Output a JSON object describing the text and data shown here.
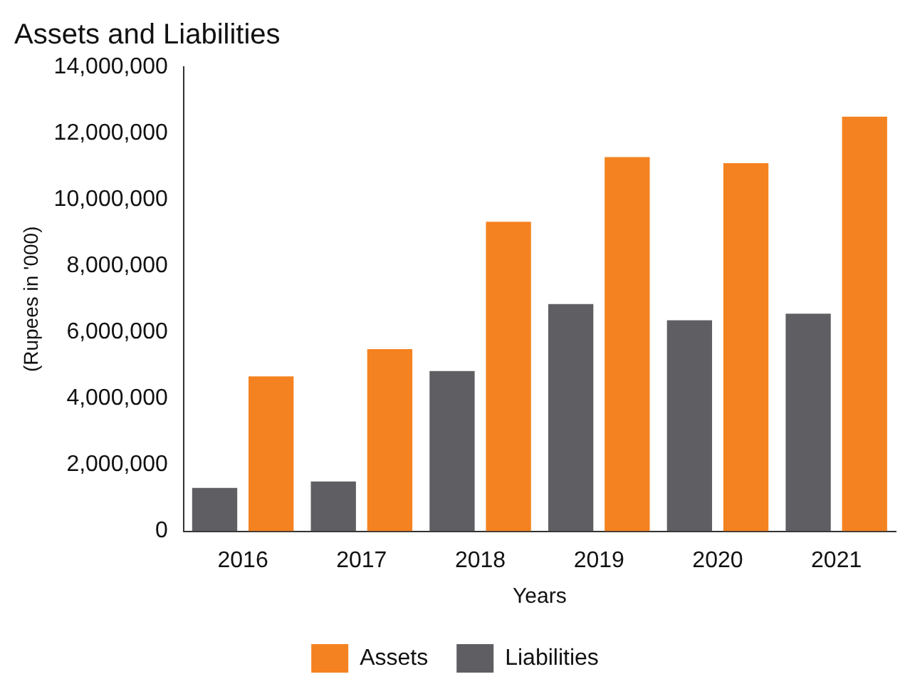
{
  "chart_data": {
    "type": "bar",
    "title": "Assets and Liabilities",
    "xlabel": "Years",
    "ylabel": "(Rupees in '000)",
    "categories": [
      "2016",
      "2017",
      "2018",
      "2019",
      "2020",
      "2021"
    ],
    "series": [
      {
        "name": "Liabilities",
        "color": "#5f5f63",
        "values": [
          1310000,
          1500000,
          4830000,
          6850000,
          6360000,
          6560000
        ]
      },
      {
        "name": "Assets",
        "color": "#f58220",
        "values": [
          4670000,
          5490000,
          9330000,
          11280000,
          11100000,
          12500000
        ]
      }
    ],
    "ylim": [
      0,
      14000000
    ],
    "yticks": [
      0,
      {
        "value": 2000000,
        "label": "2,000,000"
      },
      {
        "value": 4000000,
        "label": "4,000,000"
      },
      {
        "value": 6000000,
        "label": "6,000,000"
      },
      {
        "value": 8000000,
        "label": "8,000,000"
      },
      {
        "value": 10000000,
        "label": "10,000,000"
      },
      {
        "value": 12000000,
        "label": "12,000,000"
      },
      {
        "value": 14000000,
        "label": "14,000,000"
      }
    ],
    "grid": false,
    "legend": "bottom"
  }
}
